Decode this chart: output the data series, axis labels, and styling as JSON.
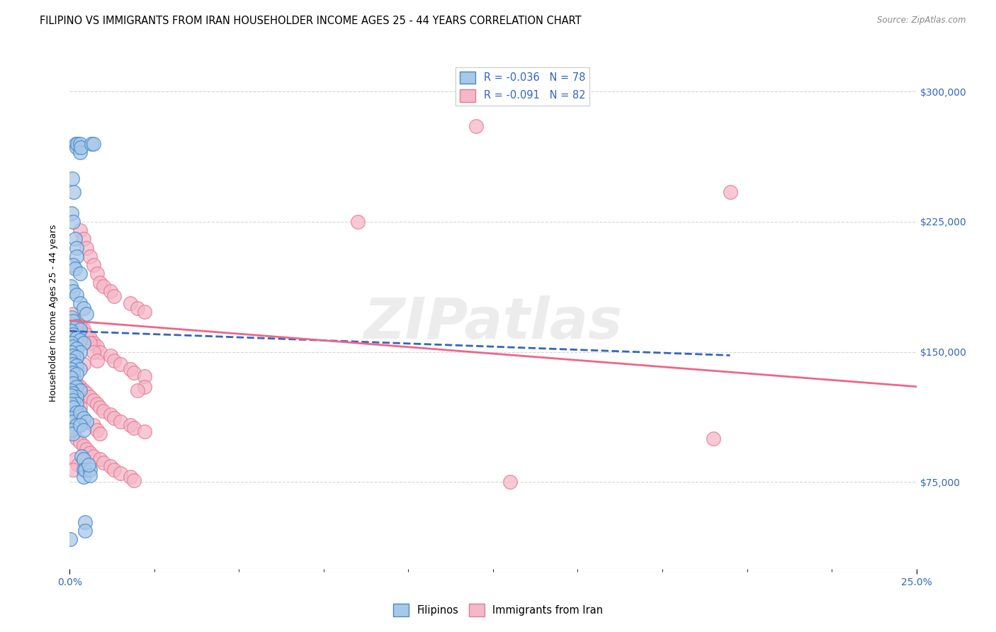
{
  "title": "FILIPINO VS IMMIGRANTS FROM IRAN HOUSEHOLDER INCOME AGES 25 - 44 YEARS CORRELATION CHART",
  "source": "Source: ZipAtlas.com",
  "ylabel": "Householder Income Ages 25 - 44 years",
  "yticks": [
    75000,
    150000,
    225000,
    300000
  ],
  "ytick_labels": [
    "$75,000",
    "$150,000",
    "$225,000",
    "$300,000"
  ],
  "watermark": "ZIPatlas",
  "legend_label1": "Filipinos",
  "legend_label2": "Immigrants from Iran",
  "blue_color": "#a8c8e8",
  "pink_color": "#f4b8c8",
  "blue_edge_color": "#4488cc",
  "pink_edge_color": "#e87890",
  "blue_line_color": "#3366bb",
  "pink_line_color": "#ee6688",
  "blue_scatter": [
    [
      0.0018,
      270000
    ],
    [
      0.002,
      268000
    ],
    [
      0.0022,
      270000
    ],
    [
      0.003,
      270000
    ],
    [
      0.003,
      265000
    ],
    [
      0.0032,
      268000
    ],
    [
      0.0065,
      270000
    ],
    [
      0.007,
      270000
    ],
    [
      0.0008,
      250000
    ],
    [
      0.0012,
      242000
    ],
    [
      0.0005,
      230000
    ],
    [
      0.001,
      225000
    ],
    [
      0.0015,
      215000
    ],
    [
      0.002,
      210000
    ],
    [
      0.002,
      205000
    ],
    [
      0.001,
      200000
    ],
    [
      0.0015,
      198000
    ],
    [
      0.003,
      195000
    ],
    [
      0.0004,
      188000
    ],
    [
      0.001,
      185000
    ],
    [
      0.002,
      183000
    ],
    [
      0.003,
      178000
    ],
    [
      0.004,
      175000
    ],
    [
      0.005,
      172000
    ],
    [
      0.0005,
      170000
    ],
    [
      0.001,
      168000
    ],
    [
      0.002,
      165000
    ],
    [
      0.003,
      163000
    ],
    [
      0.0004,
      162000
    ],
    [
      0.001,
      160000
    ],
    [
      0.002,
      158000
    ],
    [
      0.003,
      157000
    ],
    [
      0.004,
      155000
    ],
    [
      0.0005,
      155000
    ],
    [
      0.001,
      153000
    ],
    [
      0.002,
      152000
    ],
    [
      0.003,
      150000
    ],
    [
      0.0004,
      150000
    ],
    [
      0.001,
      148000
    ],
    [
      0.002,
      147000
    ],
    [
      0.0003,
      145000
    ],
    [
      0.001,
      143000
    ],
    [
      0.002,
      142000
    ],
    [
      0.003,
      140000
    ],
    [
      0.0003,
      140000
    ],
    [
      0.001,
      138000
    ],
    [
      0.002,
      137000
    ],
    [
      0.0004,
      135000
    ],
    [
      0.001,
      132000
    ],
    [
      0.002,
      130000
    ],
    [
      0.003,
      128000
    ],
    [
      0.0004,
      128000
    ],
    [
      0.001,
      126000
    ],
    [
      0.002,
      124000
    ],
    [
      0.0003,
      125000
    ],
    [
      0.001,
      122000
    ],
    [
      0.002,
      120000
    ],
    [
      0.0004,
      120000
    ],
    [
      0.001,
      118000
    ],
    [
      0.002,
      115000
    ],
    [
      0.003,
      113000
    ],
    [
      0.0004,
      112000
    ],
    [
      0.001,
      110000
    ],
    [
      0.002,
      108000
    ],
    [
      0.0004,
      105000
    ],
    [
      0.001,
      103000
    ],
    [
      0.003,
      115000
    ],
    [
      0.004,
      112000
    ],
    [
      0.005,
      110000
    ],
    [
      0.003,
      108000
    ],
    [
      0.004,
      105000
    ],
    [
      0.0035,
      90000
    ],
    [
      0.004,
      88000
    ],
    [
      0.004,
      82000
    ],
    [
      0.004,
      78000
    ],
    [
      0.0045,
      82000
    ],
    [
      0.006,
      82000
    ],
    [
      0.006,
      79000
    ],
    [
      0.0055,
      85000
    ],
    [
      0.0045,
      52000
    ],
    [
      0.0045,
      47000
    ],
    [
      0.0002,
      42000
    ]
  ],
  "pink_scatter": [
    [
      0.12,
      280000
    ],
    [
      0.195,
      242000
    ],
    [
      0.085,
      225000
    ],
    [
      0.003,
      220000
    ],
    [
      0.004,
      215000
    ],
    [
      0.005,
      210000
    ],
    [
      0.006,
      205000
    ],
    [
      0.007,
      200000
    ],
    [
      0.008,
      195000
    ],
    [
      0.009,
      190000
    ],
    [
      0.01,
      188000
    ],
    [
      0.012,
      185000
    ],
    [
      0.013,
      182000
    ],
    [
      0.018,
      178000
    ],
    [
      0.02,
      175000
    ],
    [
      0.022,
      173000
    ],
    [
      0.001,
      172000
    ],
    [
      0.002,
      168000
    ],
    [
      0.003,
      165000
    ],
    [
      0.004,
      163000
    ],
    [
      0.005,
      160000
    ],
    [
      0.006,
      158000
    ],
    [
      0.007,
      155000
    ],
    [
      0.008,
      153000
    ],
    [
      0.009,
      150000
    ],
    [
      0.012,
      148000
    ],
    [
      0.013,
      145000
    ],
    [
      0.015,
      143000
    ],
    [
      0.018,
      140000
    ],
    [
      0.019,
      138000
    ],
    [
      0.022,
      136000
    ],
    [
      0.001,
      135000
    ],
    [
      0.002,
      132000
    ],
    [
      0.003,
      130000
    ],
    [
      0.004,
      128000
    ],
    [
      0.005,
      126000
    ],
    [
      0.006,
      124000
    ],
    [
      0.007,
      122000
    ],
    [
      0.008,
      120000
    ],
    [
      0.009,
      118000
    ],
    [
      0.01,
      116000
    ],
    [
      0.012,
      114000
    ],
    [
      0.013,
      112000
    ],
    [
      0.015,
      110000
    ],
    [
      0.018,
      108000
    ],
    [
      0.019,
      106000
    ],
    [
      0.022,
      104000
    ],
    [
      0.001,
      103000
    ],
    [
      0.002,
      100000
    ],
    [
      0.003,
      98000
    ],
    [
      0.004,
      96000
    ],
    [
      0.005,
      94000
    ],
    [
      0.006,
      92000
    ],
    [
      0.007,
      90000
    ],
    [
      0.009,
      88000
    ],
    [
      0.01,
      86000
    ],
    [
      0.012,
      84000
    ],
    [
      0.013,
      82000
    ],
    [
      0.015,
      80000
    ],
    [
      0.018,
      78000
    ],
    [
      0.019,
      76000
    ],
    [
      0.13,
      75000
    ],
    [
      0.19,
      100000
    ],
    [
      0.002,
      148000
    ],
    [
      0.004,
      143000
    ],
    [
      0.003,
      110000
    ],
    [
      0.0025,
      108000
    ],
    [
      0.006,
      155000
    ],
    [
      0.007,
      150000
    ],
    [
      0.008,
      145000
    ],
    [
      0.022,
      130000
    ],
    [
      0.02,
      128000
    ],
    [
      0.002,
      120000
    ],
    [
      0.003,
      118000
    ],
    [
      0.007,
      108000
    ],
    [
      0.008,
      105000
    ],
    [
      0.009,
      103000
    ],
    [
      0.0015,
      88000
    ],
    [
      0.0025,
      85000
    ],
    [
      0.001,
      82000
    ]
  ],
  "xmin": 0.0,
  "xmax": 0.25,
  "ymin": 25000,
  "ymax": 320000,
  "blue_trend_x": [
    0.0,
    0.195
  ],
  "blue_trend_y": [
    162000,
    148000
  ],
  "pink_trend_x": [
    0.0,
    0.25
  ],
  "pink_trend_y": [
    168000,
    130000
  ],
  "background_color": "#ffffff",
  "grid_color": "#cccccc"
}
